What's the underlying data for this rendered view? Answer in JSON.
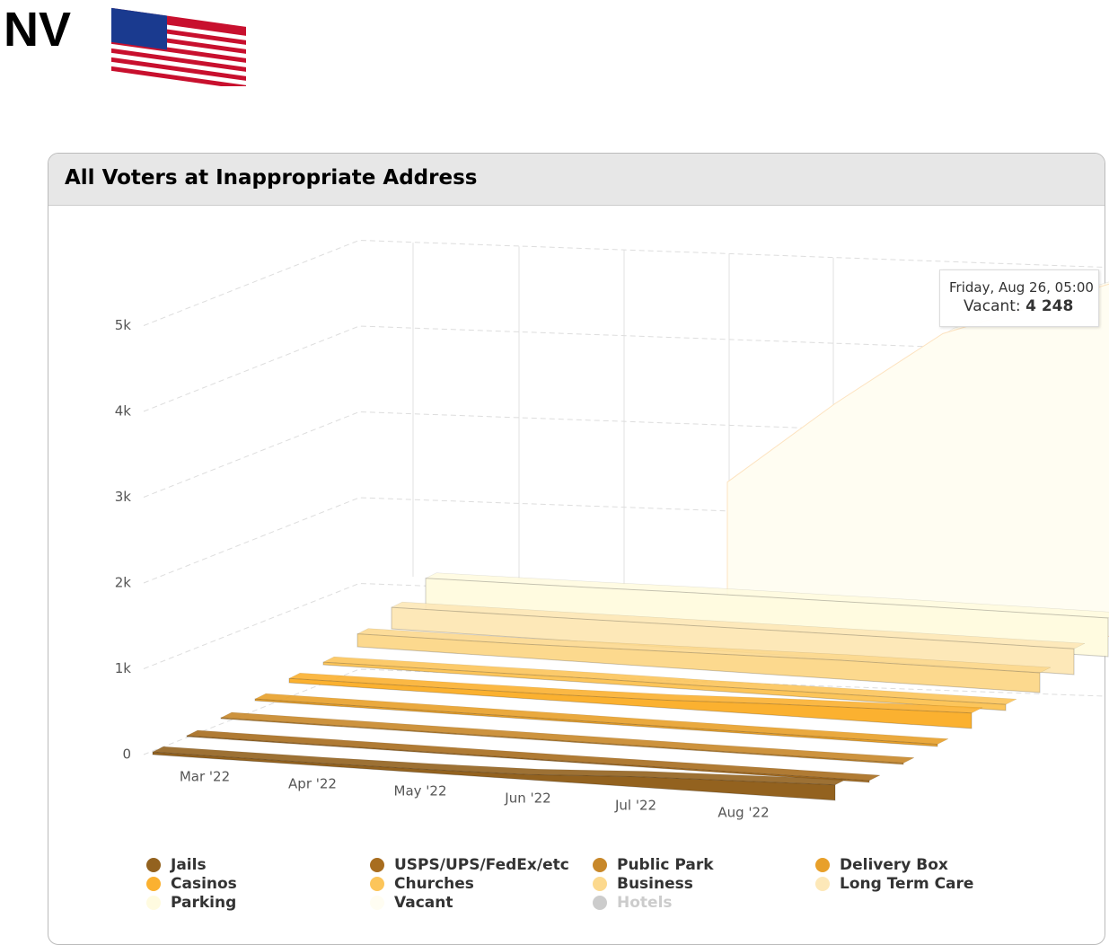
{
  "page": {
    "state": "NV"
  },
  "chart_data": {
    "type": "area3d",
    "title": "All Voters at Inappropriate Address",
    "categories": [
      "Mar '22",
      "Apr '22",
      "May '22",
      "Jun '22",
      "Jul '22",
      "Aug '22"
    ],
    "ylim": [
      0,
      5500
    ],
    "yticks": [
      0,
      {
        "value": 1000,
        "label": "1k"
      },
      {
        "value": 2000,
        "label": "2k"
      },
      {
        "value": 3000,
        "label": "3k"
      },
      {
        "value": 4000,
        "label": "4k"
      },
      {
        "value": 5000,
        "label": "5k"
      }
    ],
    "grid": true,
    "series": [
      {
        "name": "Jails",
        "color": "#93621f",
        "values": [
          30,
          30,
          40,
          60,
          120,
          180
        ]
      },
      {
        "name": "USPS/UPS/FedEx/etc",
        "color": "#a86d1f",
        "values": [
          10,
          10,
          10,
          10,
          15,
          20
        ]
      },
      {
        "name": "Public Park",
        "color": "#c8882a",
        "values": [
          10,
          10,
          10,
          10,
          10,
          15
        ]
      },
      {
        "name": "Delivery Box",
        "color": "#e8a02a",
        "values": [
          20,
          20,
          20,
          20,
          20,
          25
        ]
      },
      {
        "name": "Casinos",
        "color": "#fbb130",
        "values": [
          50,
          60,
          70,
          90,
          130,
          180
        ]
      },
      {
        "name": "Churches",
        "color": "#fcc55a",
        "values": [
          30,
          40,
          50,
          50,
          60,
          70
        ]
      },
      {
        "name": "Business",
        "color": "#fcd98e",
        "values": [
          150,
          160,
          180,
          200,
          220,
          230
        ]
      },
      {
        "name": "Long Term Care",
        "color": "#fde8b8",
        "values": [
          250,
          260,
          270,
          280,
          290,
          300
        ]
      },
      {
        "name": "Parking",
        "color": "#fffbe0",
        "values": [
          380,
          400,
          420,
          430,
          440,
          450
        ]
      },
      {
        "name": "Vacant",
        "color": "#fffdf2",
        "values": [
          null,
          null,
          1500,
          2500,
          3400,
          4248
        ]
      },
      {
        "name": "Hotels",
        "color": "#cccccc",
        "visible": false,
        "values": [
          null,
          null,
          null,
          null,
          null,
          null
        ]
      }
    ],
    "tooltip": {
      "date": "Friday, Aug 26, 05:00",
      "series_label": "Vacant:",
      "value": 4248,
      "value_label": "4 248"
    }
  }
}
